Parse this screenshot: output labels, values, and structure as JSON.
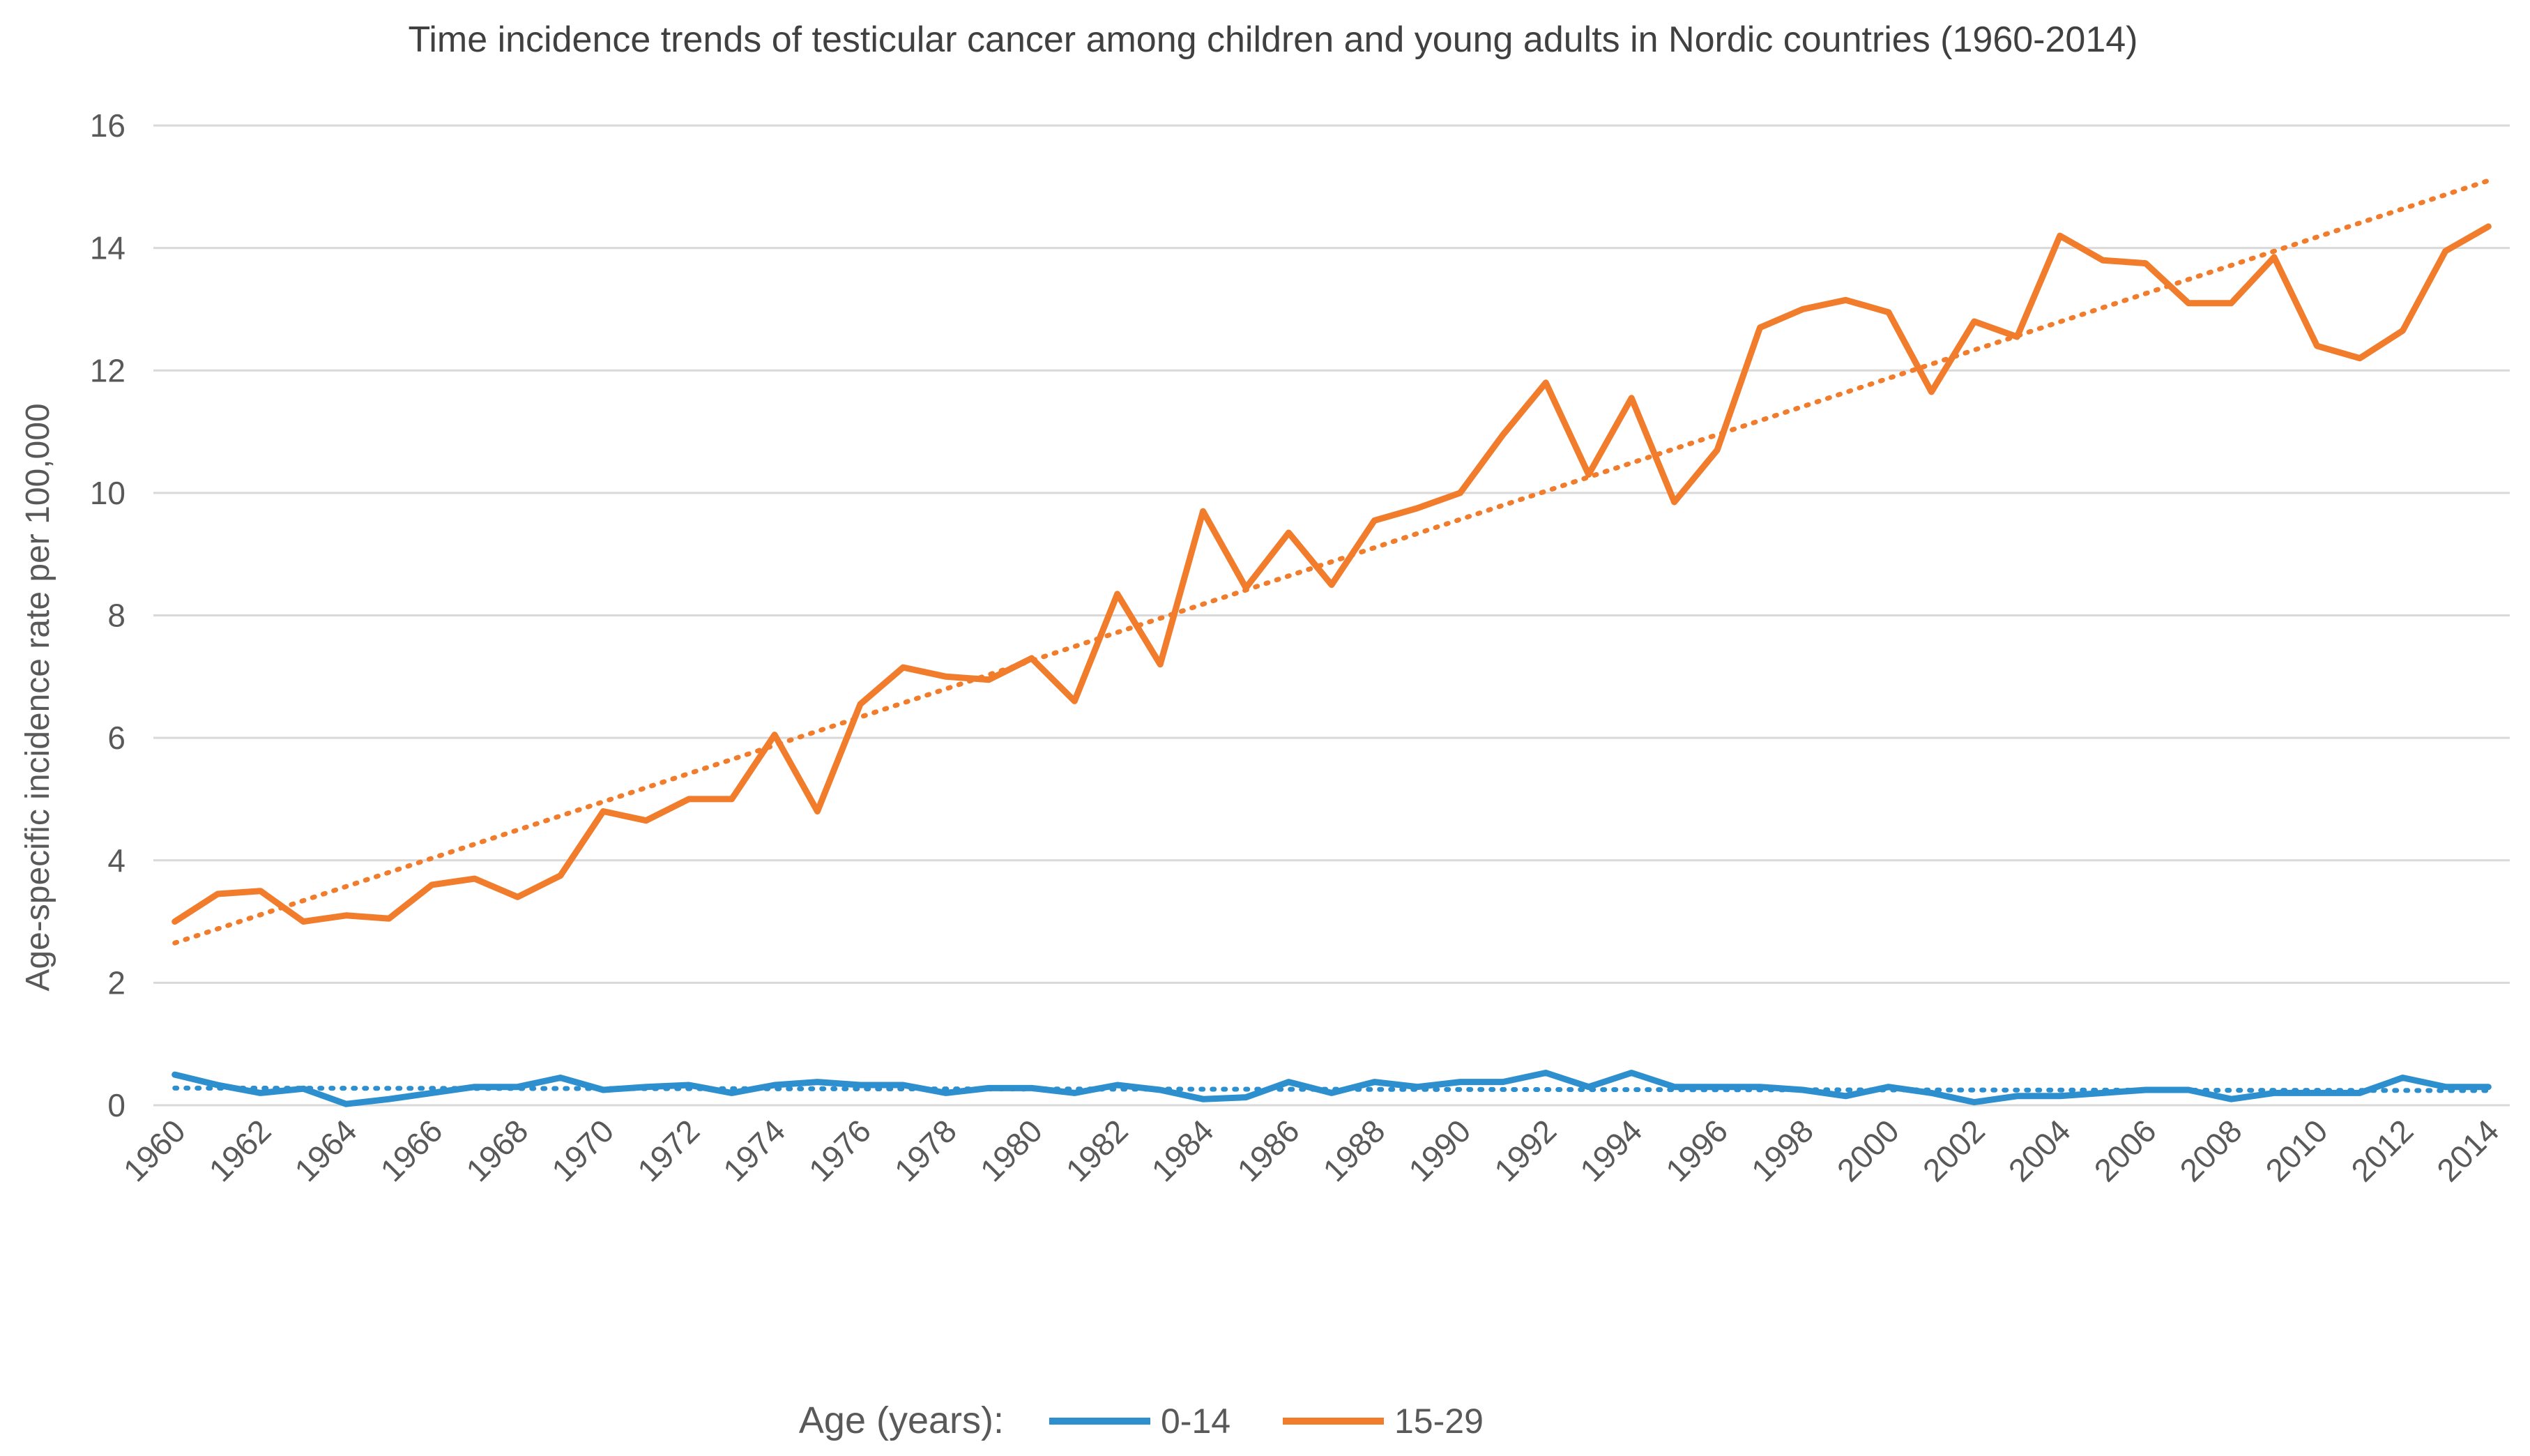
{
  "chart_data": {
    "type": "line",
    "title": "Time incidence trends of testicular cancer among children and young adults in Nordic countries (1960-2014)",
    "xlabel": "",
    "ylabel": "Age-specific incidence rate per 100,000",
    "ylim": [
      0,
      16
    ],
    "yticks": [
      0,
      2,
      4,
      6,
      8,
      10,
      12,
      14,
      16
    ],
    "grid": true,
    "legend_position": "bottom",
    "legend_title": "Age (years):",
    "x": [
      1960,
      1961,
      1962,
      1963,
      1964,
      1965,
      1966,
      1967,
      1968,
      1969,
      1970,
      1971,
      1972,
      1973,
      1974,
      1975,
      1976,
      1977,
      1978,
      1979,
      1980,
      1981,
      1982,
      1983,
      1984,
      1985,
      1986,
      1987,
      1988,
      1989,
      1990,
      1991,
      1992,
      1993,
      1994,
      1995,
      1996,
      1997,
      1998,
      1999,
      2000,
      2001,
      2002,
      2003,
      2004,
      2005,
      2006,
      2007,
      2008,
      2009,
      2010,
      2011,
      2012,
      2013,
      2014
    ],
    "xtick_labels": [
      "1960",
      "1962",
      "1964",
      "1966",
      "1968",
      "1970",
      "1972",
      "1974",
      "1976",
      "1978",
      "1980",
      "1982",
      "1984",
      "1986",
      "1988",
      "1990",
      "1992",
      "1994",
      "1996",
      "1998",
      "2000",
      "2002",
      "2004",
      "2006",
      "2008",
      "2010",
      "2012",
      "2014"
    ],
    "series": [
      {
        "name": "0-14",
        "color": "#2e8fcf",
        "values": [
          0.5,
          0.33,
          0.2,
          0.27,
          0.02,
          0.1,
          0.2,
          0.3,
          0.3,
          0.45,
          0.25,
          0.3,
          0.33,
          0.2,
          0.33,
          0.38,
          0.33,
          0.33,
          0.2,
          0.28,
          0.28,
          0.2,
          0.33,
          0.25,
          0.1,
          0.13,
          0.38,
          0.2,
          0.38,
          0.3,
          0.38,
          0.38,
          0.53,
          0.3,
          0.53,
          0.3,
          0.3,
          0.3,
          0.25,
          0.15,
          0.3,
          0.2,
          0.05,
          0.15,
          0.15,
          0.2,
          0.25,
          0.25,
          0.1,
          0.2,
          0.2,
          0.2,
          0.45,
          0.3,
          0.3
        ],
        "trend": {
          "start": 0.28,
          "end": 0.24
        }
      },
      {
        "name": "15-29",
        "color": "#f07c2c",
        "values": [
          3.0,
          3.45,
          3.5,
          3.0,
          3.1,
          3.05,
          3.6,
          3.7,
          3.4,
          3.75,
          4.8,
          4.65,
          5.0,
          5.0,
          6.05,
          4.8,
          6.55,
          7.15,
          7.0,
          6.95,
          7.3,
          6.6,
          8.35,
          7.2,
          9.7,
          8.45,
          9.35,
          8.5,
          9.55,
          9.75,
          10.0,
          10.95,
          11.8,
          10.3,
          11.55,
          9.85,
          10.7,
          12.7,
          13.0,
          13.15,
          12.95,
          11.65,
          12.8,
          12.55,
          14.2,
          13.8,
          13.75,
          13.1,
          13.1,
          13.85,
          12.4,
          12.2,
          12.65,
          13.95,
          14.35
        ],
        "trend": {
          "start": 2.65,
          "end": 15.1
        }
      }
    ]
  }
}
